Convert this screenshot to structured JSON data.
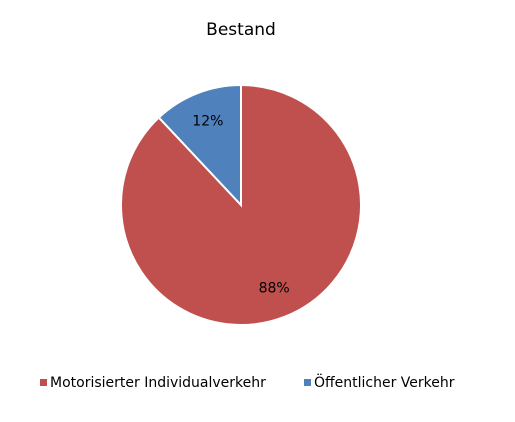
{
  "chart_data": {
    "type": "pie",
    "title": "Bestand",
    "categories": [
      "Motorisierter Individualverkehr",
      "Öffentlicher Verkehr"
    ],
    "values": [
      88,
      12
    ],
    "value_labels": [
      "88%",
      "12%"
    ],
    "colors": [
      "#c0504d",
      "#4f81bd"
    ],
    "legend": "bottom"
  }
}
